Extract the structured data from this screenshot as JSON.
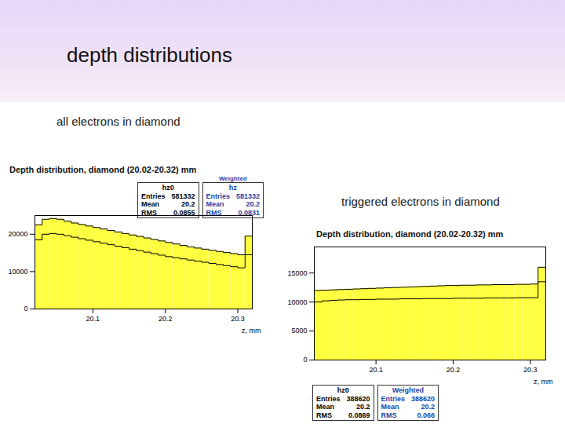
{
  "title": "depth distributions",
  "chart_data": [
    {
      "type": "histogram",
      "heading": "all electrons in diamond",
      "title": "Depth distribution, diamond (20.02-20.32) mm",
      "x_label": "z, mm",
      "bins": [
        20.02,
        20.03,
        20.04,
        20.05,
        20.06,
        20.07,
        20.08,
        20.09,
        20.1,
        20.11,
        20.12,
        20.13,
        20.14,
        20.15,
        20.16,
        20.17,
        20.18,
        20.19,
        20.2,
        20.21,
        20.22,
        20.23,
        20.24,
        20.25,
        20.26,
        20.27,
        20.28,
        20.29,
        20.3,
        20.31,
        20.32
      ],
      "series": [
        {
          "name": "hz0",
          "color": "#ffff40",
          "values": [
            22500,
            24000,
            24200,
            24000,
            23500,
            23000,
            22600,
            22200,
            21800,
            21400,
            21000,
            20600,
            20200,
            19800,
            19400,
            19000,
            18600,
            18200,
            17800,
            17400,
            17000,
            16600,
            16300,
            16000,
            15700,
            15400,
            15100,
            14800,
            14500,
            19500
          ]
        },
        {
          "name": "hz",
          "color": "#000000",
          "values": [
            18500,
            20000,
            20200,
            20000,
            19600,
            19200,
            18800,
            18400,
            18000,
            17600,
            17200,
            16800,
            16400,
            16000,
            15600,
            15200,
            14800,
            14400,
            14000,
            13700,
            13400,
            13100,
            12800,
            12500,
            12200,
            11900,
            11600,
            11300,
            11000,
            14500
          ]
        }
      ],
      "xlim": [
        20.02,
        20.32
      ],
      "xticks": [
        20.1,
        20.2,
        20.3
      ],
      "ylim": [
        0,
        25000
      ],
      "yticks": [
        0,
        10000,
        20000
      ],
      "stat_labels": [
        "Entries",
        "Mean",
        "RMS"
      ],
      "stats": [
        {
          "label": "hz0",
          "entries": 581332,
          "mean": 20.2,
          "rms": 0.0855
        },
        {
          "caption": "Weighted",
          "label": "hz",
          "entries": 581332,
          "mean": 20.2,
          "rms": 0.0831
        }
      ]
    },
    {
      "type": "histogram",
      "heading": "triggered electrons in diamond",
      "title": "Depth distribution, diamond (20.02-20.32) mm",
      "x_label": "z, mm",
      "bins": [
        20.02,
        20.03,
        20.04,
        20.05,
        20.06,
        20.07,
        20.08,
        20.09,
        20.1,
        20.11,
        20.12,
        20.13,
        20.14,
        20.15,
        20.16,
        20.17,
        20.18,
        20.19,
        20.2,
        20.21,
        20.22,
        20.23,
        20.24,
        20.25,
        20.26,
        20.27,
        20.28,
        20.29,
        20.3,
        20.31,
        20.32
      ],
      "series": [
        {
          "name": "hz0",
          "color": "#ffff40",
          "values": [
            12000,
            12050,
            12100,
            12150,
            12200,
            12250,
            12300,
            12350,
            12400,
            12450,
            12500,
            12550,
            12600,
            12650,
            12700,
            12750,
            12800,
            12850,
            12850,
            12900,
            12900,
            12950,
            12950,
            13000,
            13000,
            13000,
            13050,
            13050,
            13100,
            16000
          ]
        },
        {
          "name": "Weighted",
          "color": "#000000",
          "values": [
            10000,
            10200,
            10300,
            10350,
            10400,
            10400,
            10450,
            10450,
            10500,
            10500,
            10500,
            10550,
            10550,
            10550,
            10600,
            10600,
            10600,
            10600,
            10650,
            10650,
            10650,
            10650,
            10700,
            10700,
            10700,
            10700,
            10750,
            10750,
            10750,
            13500
          ]
        }
      ],
      "xlim": [
        20.02,
        20.32
      ],
      "xticks": [
        20.1,
        20.2,
        20.3
      ],
      "ylim": [
        0,
        19500
      ],
      "yticks": [
        0,
        5000,
        10000,
        15000
      ],
      "stat_labels": [
        "Entries",
        "Mean",
        "RMS"
      ],
      "stats": [
        {
          "label": "hz0",
          "entries": 388620,
          "mean": 20.2,
          "rms": 0.0869
        },
        {
          "label": "Weighted",
          "entries": 388620,
          "mean": 20.2,
          "rms": 0.066
        }
      ]
    }
  ]
}
